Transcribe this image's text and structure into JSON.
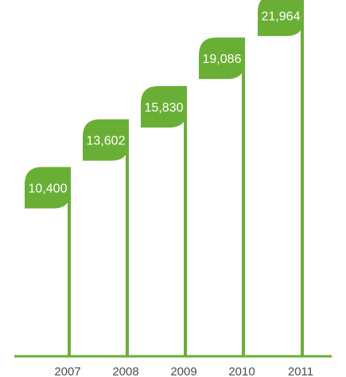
{
  "colors": {
    "accent": "#6aaf35",
    "axis": "#6aaf35",
    "label_text": "#ffffff",
    "year_text": "#4d4d4d"
  },
  "chart_data": {
    "type": "bar",
    "title": "",
    "xlabel": "",
    "ylabel": "",
    "categories": [
      "2007",
      "2008",
      "2009",
      "2010",
      "2011"
    ],
    "values": [
      10400,
      13602,
      15830,
      19086,
      21964
    ],
    "value_labels": [
      "10,400",
      "13,602",
      "15,830",
      "19,086",
      "21,964"
    ],
    "ylim": [
      0,
      21964
    ],
    "grid": false,
    "legend": "none"
  }
}
